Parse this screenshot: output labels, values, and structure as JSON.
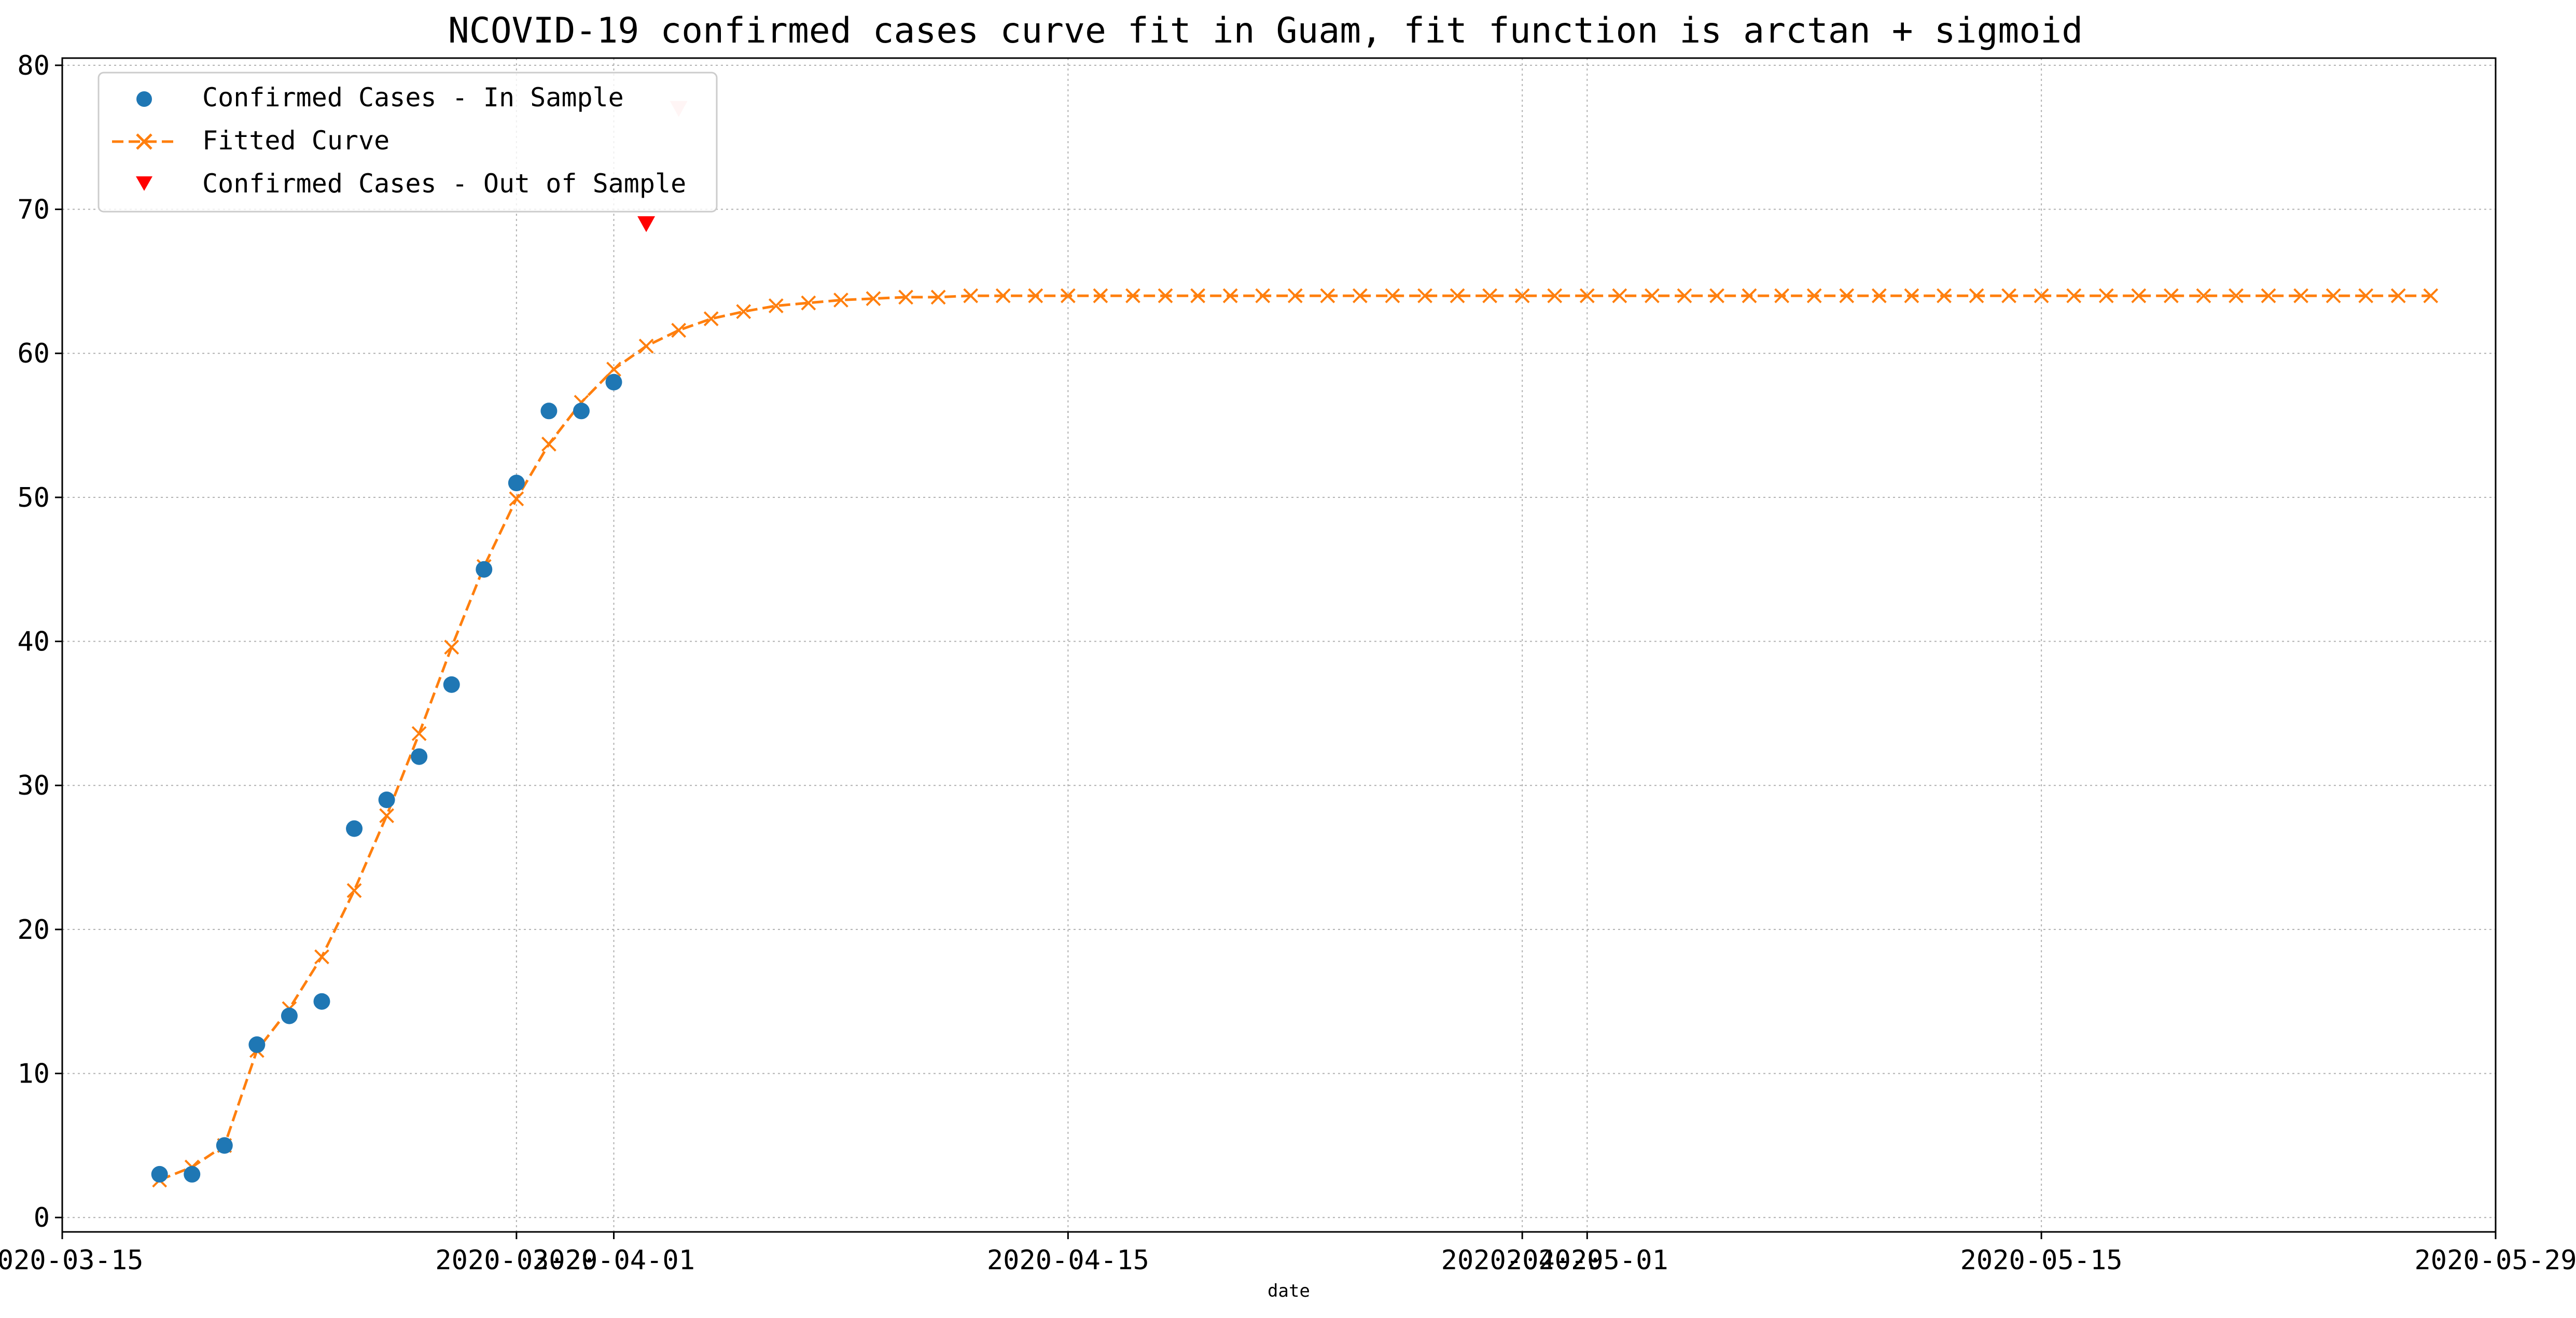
{
  "chart_data": {
    "type": "line",
    "title": "NCOVID-19 confirmed cases curve fit in Guam, fit function is arctan + sigmoid",
    "xlabel": "date",
    "ylabel": "",
    "x_axis_kind": "date",
    "xlim": [
      "2020-03-15",
      "2020-05-29"
    ],
    "ylim": [
      -1,
      80.5
    ],
    "x_ticks": [
      "2020-03-15",
      "2020-03-29",
      "2020-04-01",
      "2020-04-15",
      "2020-04-29",
      "2020-05-01",
      "2020-05-15",
      "2020-05-29"
    ],
    "y_ticks": [
      0,
      10,
      20,
      30,
      40,
      50,
      60,
      70,
      80
    ],
    "grid": true,
    "legend_position": "top-left",
    "legend": {
      "in_sample": "Confirmed Cases - In Sample",
      "fitted": "Fitted Curve",
      "out_sample": "Confirmed Cases - Out of Sample"
    },
    "colors": {
      "in_sample": "#1f77b4",
      "fitted": "#ff7f0e",
      "out_sample": "#ff0000",
      "out_sample_faded": "#ffcccc"
    },
    "series": [
      {
        "name": "Confirmed Cases - In Sample",
        "kind": "scatter",
        "points": [
          [
            "2020-03-18",
            3
          ],
          [
            "2020-03-19",
            3
          ],
          [
            "2020-03-20",
            5
          ],
          [
            "2020-03-21",
            12
          ],
          [
            "2020-03-22",
            14
          ],
          [
            "2020-03-23",
            15
          ],
          [
            "2020-03-24",
            27
          ],
          [
            "2020-03-25",
            29
          ],
          [
            "2020-03-26",
            32
          ],
          [
            "2020-03-27",
            37
          ],
          [
            "2020-03-28",
            45
          ],
          [
            "2020-03-29",
            51
          ],
          [
            "2020-03-30",
            56
          ],
          [
            "2020-03-31",
            56
          ],
          [
            "2020-04-01",
            58
          ]
        ]
      },
      {
        "name": "Fitted Curve",
        "kind": "line",
        "start_date": "2020-03-18",
        "values": [
          2.6,
          3.5,
          5.0,
          11.6,
          14.5,
          18.1,
          22.7,
          27.9,
          33.6,
          39.6,
          45.2,
          49.9,
          53.7,
          56.6,
          58.9,
          60.5,
          61.6,
          62.4,
          62.9,
          63.3,
          63.5,
          63.7,
          63.8,
          63.9,
          63.9,
          64.0,
          64.0,
          64.0,
          64.0,
          64.0,
          64.0,
          64.0,
          64.0,
          64.0,
          64.0,
          64.0,
          64.0,
          64.0,
          64.0,
          64.0,
          64.0,
          64.0,
          64.0,
          64.0,
          64.0,
          64.0,
          64.0,
          64.0,
          64.0,
          64.0,
          64.0,
          64.0,
          64.0,
          64.0,
          64.0,
          64.0,
          64.0,
          64.0,
          64.0,
          64.0,
          64.0,
          64.0,
          64.0,
          64.0,
          64.0,
          64.0,
          64.0,
          64.0,
          64.0,
          64.0,
          64.0
        ]
      },
      {
        "name": "Confirmed Cases - Out of Sample",
        "kind": "scatter",
        "points": [
          [
            "2020-04-02",
            69
          ],
          [
            "2020-04-03",
            77
          ]
        ],
        "faded": [
          false,
          true
        ]
      }
    ]
  }
}
